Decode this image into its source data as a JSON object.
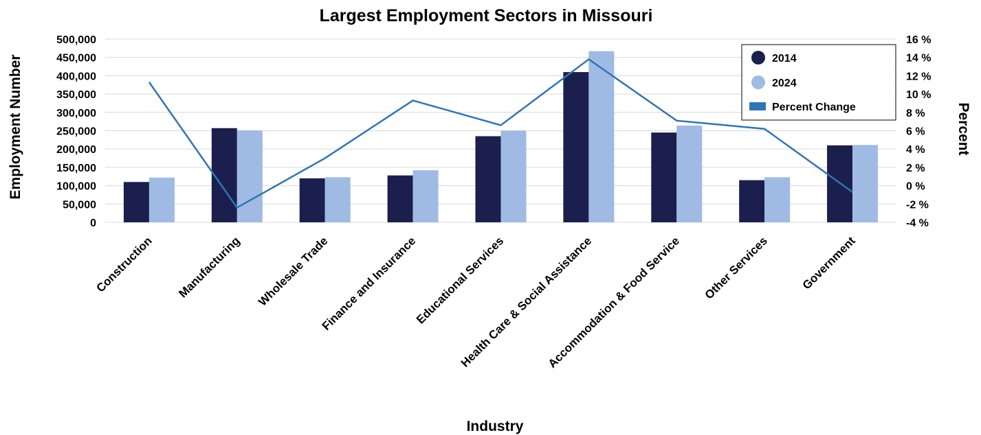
{
  "colors": {
    "series_2014": "#1b1f4e",
    "series_2024": "#9fbbe3",
    "percent_change": "#2e75b6",
    "gridline": "#d9d9d9"
  },
  "chart_data": {
    "type": "bar",
    "title": "Largest Employment Sectors in Missouri",
    "xlabel": "Industry",
    "ylabel": "Employment Number",
    "y2label": "Percent",
    "categories": [
      "Construction",
      "Manufacturing",
      "Wholesale Trade",
      "Finance and Insurance",
      "Educational Services",
      "Health Care & Social Assistance",
      "Accommodation & Food Service",
      "Other Services",
      "Government"
    ],
    "series": [
      {
        "name": "2014",
        "type": "bar",
        "axis": "left",
        "values": [
          110000,
          257000,
          120000,
          128000,
          235000,
          410000,
          245000,
          115000,
          210000
        ]
      },
      {
        "name": "2024",
        "type": "bar",
        "axis": "left",
        "values": [
          122000,
          251000,
          123000,
          142000,
          250000,
          467000,
          264000,
          123000,
          211000
        ]
      },
      {
        "name": "Percent Change",
        "type": "line",
        "axis": "right",
        "values": [
          11.3,
          -2.4,
          3.0,
          9.3,
          6.6,
          13.8,
          7.1,
          6.2,
          -0.7
        ]
      }
    ],
    "ylim": [
      0,
      500000
    ],
    "y2lim": [
      -4,
      16
    ],
    "yticks": [
      "500,000",
      "450,000",
      "400,000",
      "350,000",
      "300,000",
      "250,000",
      "200,000",
      "150,000",
      "100,000",
      "50,000",
      "0"
    ],
    "y2ticks": [
      "16 %",
      "14 %",
      "12 %",
      "10 %",
      "8 %",
      "6 %",
      "4 %",
      "2 %",
      "0 %",
      "-2 %",
      "-4 %"
    ],
    "grid": true,
    "legend": "top-right"
  }
}
